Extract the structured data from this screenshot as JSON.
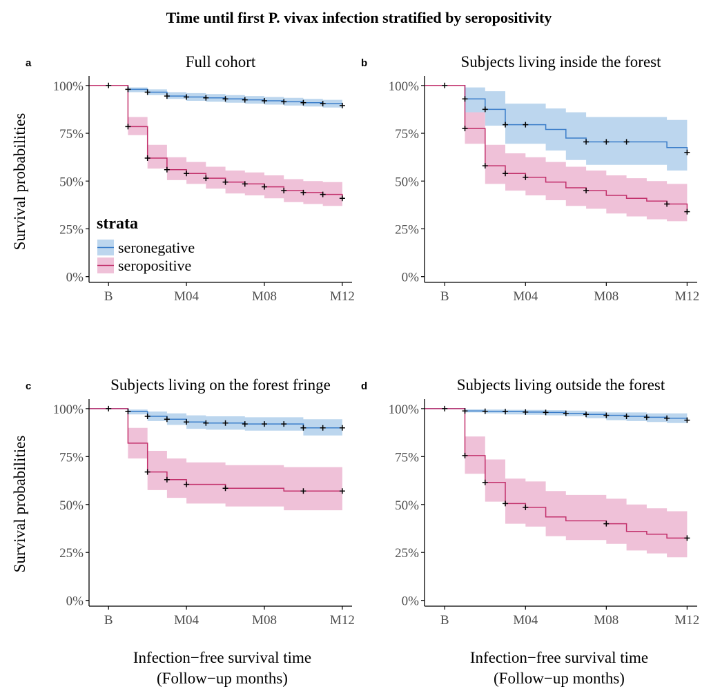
{
  "figure": {
    "title": "Time until first P. vivax infection stratified by seropositivity",
    "y_axis_label": "Survival probabilities",
    "x_axis_label_line1": "Infection−free survival time",
    "x_axis_label_line2": "(Follow−up months)"
  },
  "legend": {
    "title": "strata",
    "items": [
      {
        "label": "seronegative",
        "color": "#3a7dc9",
        "fill": "#bcd6ee"
      },
      {
        "label": "seropositive",
        "color": "#c2306b",
        "fill": "#efc1d8"
      }
    ]
  },
  "colors": {
    "seronegative_line": "#3a7dc9",
    "seronegative_band": "#bcd6ee",
    "seropositive_line": "#c2306b",
    "seropositive_band": "#efc1d8",
    "censor_mark": "#000000",
    "axis": "#000000",
    "tick_text": "#4d4d4d"
  },
  "chart_data": [
    {
      "type": "line",
      "panel_letter": "a",
      "title": "Full cohort",
      "x_ticks": [
        {
          "value": 0,
          "label": "B"
        },
        {
          "value": 4,
          "label": "M04"
        },
        {
          "value": 8,
          "label": "M08"
        },
        {
          "value": 12,
          "label": "M12"
        }
      ],
      "y_ticks": [
        {
          "value": 0,
          "label": "0%"
        },
        {
          "value": 25,
          "label": "25%"
        },
        {
          "value": 50,
          "label": "50%"
        },
        {
          "value": 75,
          "label": "75%"
        },
        {
          "value": 100,
          "label": "100%"
        }
      ],
      "xlim": [
        -1,
        12.5
      ],
      "ylim": [
        -3,
        105
      ],
      "grid": false,
      "legend": "inside-bottom-left",
      "series": [
        {
          "name": "seronegative",
          "x": [
            0,
            1,
            2,
            3,
            4,
            5,
            6,
            7,
            8,
            9,
            10,
            11,
            12
          ],
          "y": [
            100,
            98,
            96.5,
            94.5,
            94,
            93.5,
            93,
            92.5,
            92,
            91.5,
            91,
            90.5,
            89.5
          ],
          "lower": [
            100,
            96.5,
            95,
            93,
            92,
            91.5,
            91,
            90.5,
            90,
            89.5,
            89,
            88.5,
            87.5
          ],
          "upper": [
            100,
            99,
            98,
            96.5,
            96,
            95.5,
            95,
            94.5,
            94,
            93.5,
            93,
            92.5,
            91.5
          ],
          "censor_x": [
            0,
            1,
            2,
            3,
            4,
            5,
            6,
            7,
            8,
            9,
            10,
            11,
            12
          ]
        },
        {
          "name": "seropositive",
          "x": [
            0,
            1,
            2,
            3,
            4,
            5,
            6,
            7,
            8,
            9,
            10,
            11,
            12
          ],
          "y": [
            100,
            78.5,
            62,
            56,
            54,
            51.5,
            49.5,
            48.5,
            47,
            45,
            44,
            43,
            41
          ],
          "lower": [
            100,
            74,
            56.5,
            50.5,
            48.5,
            46,
            43.5,
            42.5,
            41,
            39,
            38,
            37,
            36
          ],
          "upper": [
            100,
            83.5,
            69,
            62.5,
            60,
            57.5,
            55.5,
            54.5,
            53,
            51,
            50,
            49.5,
            49.5
          ],
          "censor_x": [
            1,
            2,
            3,
            4,
            5,
            6,
            7,
            8,
            9,
            10,
            11,
            12
          ]
        }
      ]
    },
    {
      "type": "line",
      "panel_letter": "b",
      "title": "Subjects living inside the forest",
      "x_ticks": [
        {
          "value": 0,
          "label": "B"
        },
        {
          "value": 4,
          "label": "M04"
        },
        {
          "value": 8,
          "label": "M08"
        },
        {
          "value": 12,
          "label": "M12"
        }
      ],
      "y_ticks": [
        {
          "value": 0,
          "label": "0%"
        },
        {
          "value": 25,
          "label": "25%"
        },
        {
          "value": 50,
          "label": "50%"
        },
        {
          "value": 75,
          "label": "75%"
        },
        {
          "value": 100,
          "label": "100%"
        }
      ],
      "xlim": [
        -1,
        12.5
      ],
      "ylim": [
        -3,
        105
      ],
      "grid": false,
      "legend": "none",
      "series": [
        {
          "name": "seronegative",
          "x": [
            0,
            1,
            2,
            3,
            4,
            5,
            6,
            7,
            8,
            9,
            10,
            11,
            12
          ],
          "y": [
            100,
            93,
            87.5,
            79.5,
            79.5,
            77,
            72.5,
            70.5,
            70.5,
            70.5,
            70.5,
            67.5,
            65
          ],
          "lower": [
            100,
            85.5,
            79,
            69.5,
            69.5,
            66,
            61,
            58.5,
            58.5,
            58.5,
            58.5,
            55.5,
            55.5
          ],
          "upper": [
            100,
            99,
            97,
            90.5,
            90.5,
            88,
            86,
            83.5,
            83.5,
            83.5,
            83.5,
            82,
            82
          ],
          "censor_x": [
            0,
            1,
            2,
            3,
            4,
            7,
            8,
            9,
            12
          ]
        },
        {
          "name": "seropositive",
          "x": [
            0,
            1,
            2,
            3,
            4,
            5,
            6,
            7,
            8,
            9,
            10,
            11,
            12
          ],
          "y": [
            100,
            77.5,
            58,
            54,
            52,
            49.5,
            46.5,
            45,
            42.5,
            41,
            39.5,
            38,
            34
          ],
          "lower": [
            100,
            69.5,
            48.5,
            45,
            42.5,
            40,
            37,
            35.5,
            33,
            31.5,
            30,
            29,
            29
          ],
          "upper": [
            100,
            86,
            69,
            64.5,
            62.5,
            60,
            57.5,
            55.5,
            53,
            51.5,
            50,
            48.5,
            48.5
          ],
          "censor_x": [
            1,
            2,
            3,
            4,
            7,
            11,
            12
          ]
        }
      ]
    },
    {
      "type": "line",
      "panel_letter": "c",
      "title": "Subjects living on the forest fringe",
      "x_ticks": [
        {
          "value": 0,
          "label": "B"
        },
        {
          "value": 4,
          "label": "M04"
        },
        {
          "value": 8,
          "label": "M08"
        },
        {
          "value": 12,
          "label": "M12"
        }
      ],
      "y_ticks": [
        {
          "value": 0,
          "label": "0%"
        },
        {
          "value": 25,
          "label": "25%"
        },
        {
          "value": 50,
          "label": "50%"
        },
        {
          "value": 75,
          "label": "75%"
        },
        {
          "value": 100,
          "label": "100%"
        }
      ],
      "xlim": [
        -1,
        12.5
      ],
      "ylim": [
        -3,
        105
      ],
      "grid": false,
      "legend": "none",
      "series": [
        {
          "name": "seronegative",
          "x": [
            0,
            1,
            2,
            3,
            4,
            5,
            6,
            7,
            8,
            9,
            10,
            11,
            12
          ],
          "y": [
            100,
            98.5,
            96,
            94.5,
            93,
            92.5,
            92.5,
            92,
            92,
            92,
            90,
            90,
            90
          ],
          "lower": [
            100,
            97,
            93.5,
            91.5,
            89.5,
            89,
            89,
            88.5,
            88.5,
            88.5,
            86,
            86,
            86
          ],
          "upper": [
            100,
            99.5,
            98.5,
            97.5,
            96.5,
            96,
            96,
            95.5,
            95.5,
            95.5,
            94.5,
            94.5,
            94.5
          ],
          "censor_x": [
            0,
            1,
            2,
            3,
            4,
            5,
            6,
            7,
            8,
            9,
            10,
            11,
            12
          ]
        },
        {
          "name": "seropositive",
          "x": [
            0,
            1,
            2,
            3,
            4,
            5,
            6,
            7,
            8,
            9,
            10,
            11,
            12
          ],
          "y": [
            100,
            82,
            67,
            63,
            60.5,
            60.5,
            58.5,
            58.5,
            58.5,
            57,
            57,
            57,
            57
          ],
          "lower": [
            100,
            74,
            57.5,
            53.5,
            50.5,
            50.5,
            49,
            49,
            49,
            47,
            47,
            47,
            47
          ],
          "upper": [
            100,
            90,
            78,
            74,
            72,
            72,
            70.5,
            70.5,
            70.5,
            69.5,
            69.5,
            69.5,
            69.5
          ],
          "censor_x": [
            2,
            3,
            4,
            6,
            10,
            12
          ]
        }
      ]
    },
    {
      "type": "line",
      "panel_letter": "d",
      "title": "Subjects living outside the forest",
      "x_ticks": [
        {
          "value": 0,
          "label": "B"
        },
        {
          "value": 4,
          "label": "M04"
        },
        {
          "value": 8,
          "label": "M08"
        },
        {
          "value": 12,
          "label": "M12"
        }
      ],
      "y_ticks": [
        {
          "value": 0,
          "label": "0%"
        },
        {
          "value": 25,
          "label": "25%"
        },
        {
          "value": 50,
          "label": "50%"
        },
        {
          "value": 75,
          "label": "75%"
        },
        {
          "value": 100,
          "label": "100%"
        }
      ],
      "xlim": [
        -1,
        12.5
      ],
      "ylim": [
        -3,
        105
      ],
      "grid": false,
      "legend": "none",
      "series": [
        {
          "name": "seronegative",
          "x": [
            0,
            1,
            2,
            3,
            4,
            5,
            6,
            7,
            8,
            9,
            10,
            11,
            12
          ],
          "y": [
            100,
            98.8,
            98.6,
            98.4,
            98.2,
            98,
            97.5,
            97,
            96.5,
            96,
            95.5,
            95,
            94
          ],
          "lower": [
            100,
            98,
            97.5,
            97,
            96.8,
            96.5,
            96,
            95,
            94,
            93.5,
            93,
            92.5,
            92
          ],
          "upper": [
            100,
            99.6,
            99.5,
            99.4,
            99.3,
            99.2,
            99,
            98.5,
            98,
            98,
            97.5,
            97.5,
            97.5
          ],
          "censor_x": [
            0,
            1,
            2,
            3,
            4,
            5,
            6,
            7,
            8,
            9,
            10,
            11,
            12
          ]
        },
        {
          "name": "seropositive",
          "x": [
            0,
            1,
            2,
            3,
            4,
            5,
            6,
            7,
            8,
            9,
            10,
            11,
            12
          ],
          "y": [
            100,
            75.5,
            61.5,
            50.5,
            48.5,
            43.5,
            41.5,
            41.5,
            40,
            36,
            34.5,
            32.5,
            32.5
          ],
          "lower": [
            100,
            66,
            51.5,
            40,
            38.5,
            33.5,
            31.5,
            31.5,
            29.5,
            26,
            24.5,
            22.5,
            22.5
          ],
          "upper": [
            100,
            85.5,
            73.5,
            63.5,
            62,
            57,
            55,
            55,
            53,
            50,
            48,
            46.5,
            46.5
          ],
          "censor_x": [
            1,
            2,
            3,
            4,
            8,
            12
          ]
        }
      ]
    }
  ]
}
